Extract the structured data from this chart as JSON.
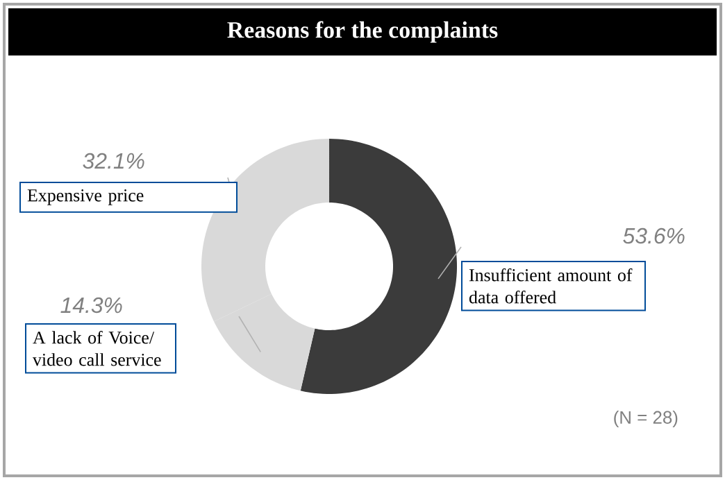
{
  "chart_data": {
    "type": "donut",
    "title": "Reasons for the complaints",
    "categories": [
      "Insufficient amount of data offered",
      "A lack of Voice/ video call service",
      "Expensive price"
    ],
    "values": [
      53.6,
      14.3,
      32.1
    ],
    "colors": [
      "#3b3b3b",
      "#d9d9d9",
      "#d9d9d9"
    ],
    "value_labels": [
      "53.6%",
      "14.3%",
      "32.1%"
    ],
    "annotations": [
      "(N = 28)"
    ]
  }
}
